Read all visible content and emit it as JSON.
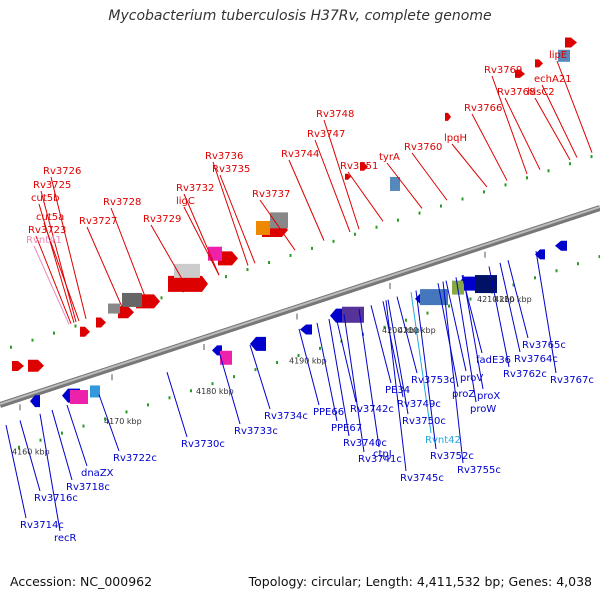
{
  "title": "Mycobacterium tuberculosis H37Rv, complete genome",
  "footer": {
    "accession": "Accession: NC_000962",
    "summary": "Topology: circular; Length: 4,411,532 bp; Genes: 4,038"
  },
  "colors": {
    "forward": "#dd0000",
    "reverse": "#0000cc",
    "rna": "#ee88bb",
    "trna": "#22aadd",
    "backbone": "#999999"
  },
  "ticks": [
    "4160 kbp",
    "4170 kbp",
    "4180 kbp",
    "4190 kbp",
    "4200 kbp",
    "4210 kbp"
  ],
  "top_labels": [
    "lipE",
    "Rv3769",
    "echA21",
    "Rv3768",
    "hisC2",
    "Rv3766",
    "Rv3748",
    "Rv3747",
    "lpqH",
    "Rv3760",
    "Rv3736",
    "Rv3744",
    "Rv3735",
    "tyrA",
    "Rv3751",
    "Rv3726",
    "Rv3732",
    "Rv3725",
    "Rv3737",
    "cut5b",
    "Rv3728",
    "ligC",
    "cut5a",
    "Rv3727",
    "Rv3729",
    "Rv3723",
    "Rvnt41"
  ],
  "bottom_labels": [
    "4200 kbp",
    "4210 kbp",
    "Rv3765c",
    "Rv3764c",
    "fadE36",
    "Rv3762c",
    "Rv3767c",
    "proV",
    "proX",
    "proZ",
    "proW",
    "Rv3753c",
    "PE34",
    "Rv3749c",
    "Rv3750c",
    "Rvnt42",
    "Rv3752c",
    "Rv3755c",
    "Rv3745c",
    "Rv3742c",
    "PPE66",
    "PPE67",
    "ctpJ",
    "Rv3740c",
    "Rv3741c",
    "Rv3734c",
    "Rv3733c",
    "Rv3730c",
    "Rv3722c",
    "dnaZX",
    "Rv3718c",
    "Rv3716c",
    "Rv3714c",
    "recR"
  ]
}
